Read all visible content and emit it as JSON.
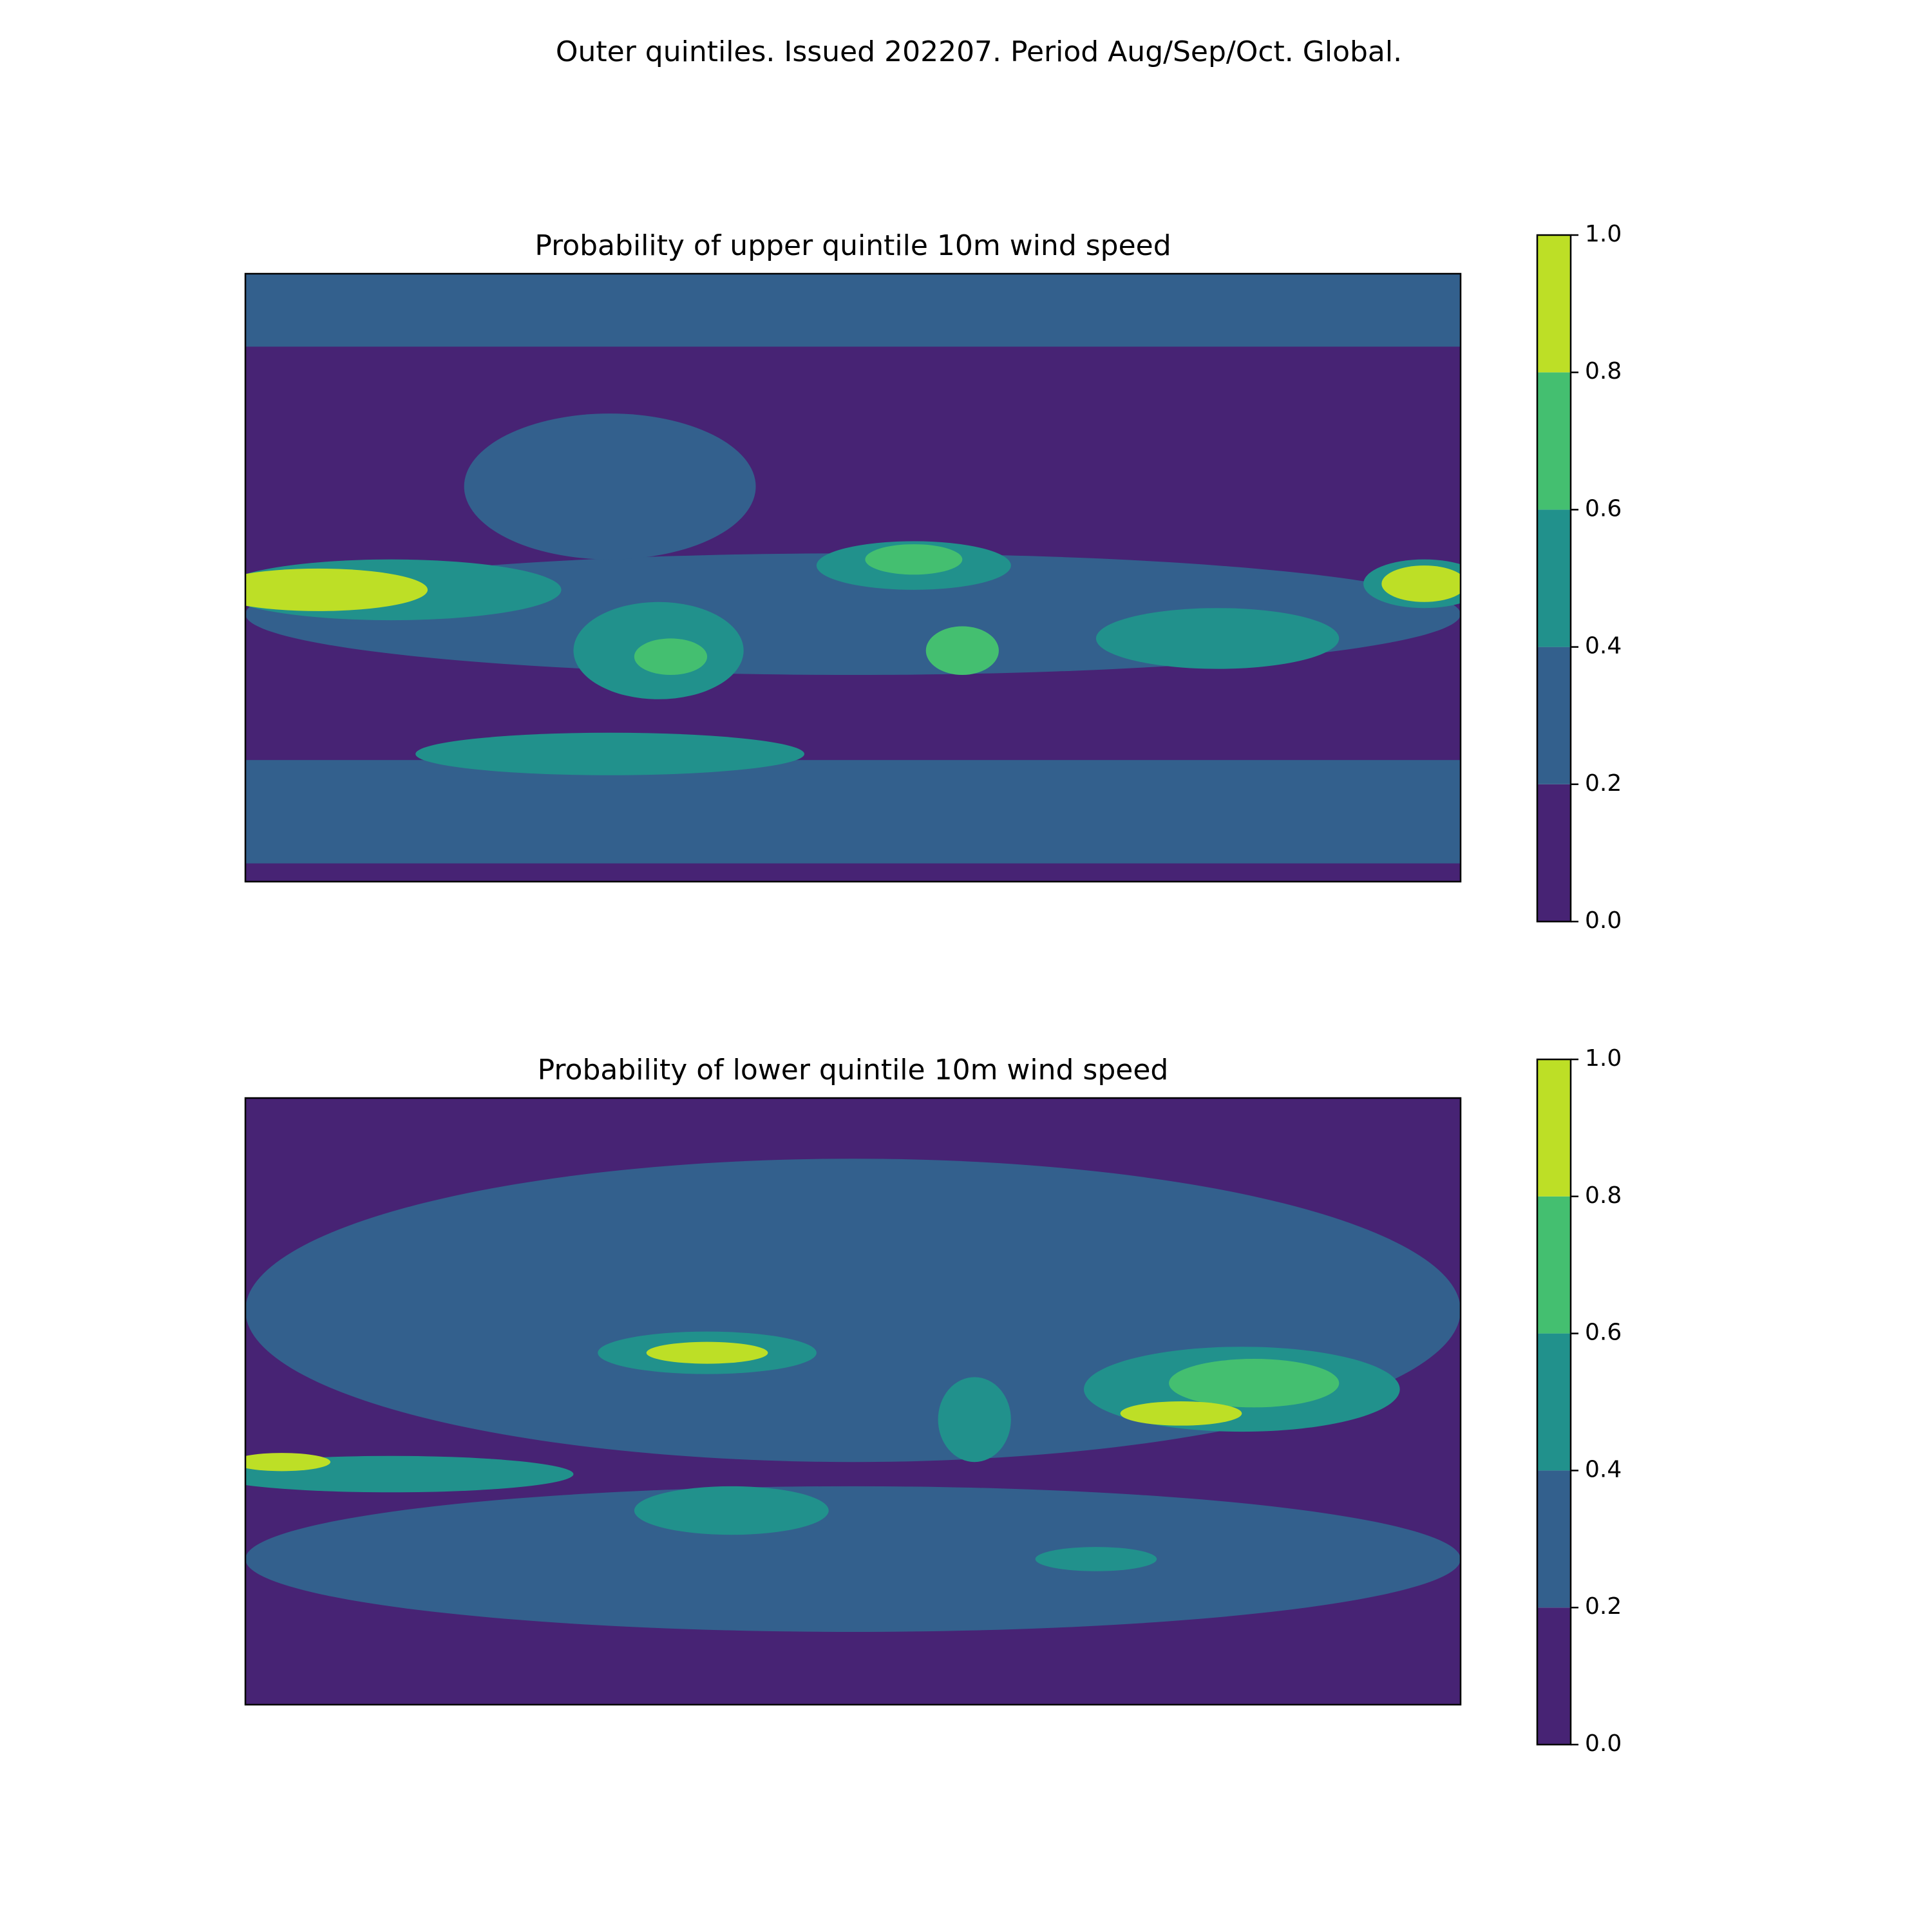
{
  "title": "Outer quintiles. Issued 202207. Period Aug/Sep/Oct. Global.",
  "chart_data": [
    {
      "type": "contour-map",
      "title": "Probability of upper quintile 10m wind speed",
      "levels": [
        0,
        0.2,
        0.4,
        0.6,
        0.8,
        1
      ],
      "colors": [
        "#472374",
        "#33608d",
        "#21918c",
        "#44bf70",
        "#bddf26"
      ],
      "cbar_ticks": [
        {
          "value": 0,
          "label": "0.0"
        },
        0.2,
        0.4,
        0.6,
        0.8,
        {
          "value": 1,
          "label": "1.0"
        }
      ]
    },
    {
      "type": "contour-map",
      "title": "Probability of lower quintile 10m wind speed",
      "levels": [
        0,
        0.2,
        0.4,
        0.6,
        0.8,
        1
      ],
      "colors": [
        "#472374",
        "#33608d",
        "#21918c",
        "#44bf70",
        "#bddf26"
      ],
      "cbar_ticks": [
        {
          "value": 0,
          "label": "0.0"
        },
        0.2,
        0.4,
        0.6,
        0.8,
        {
          "value": 1,
          "label": "1.0"
        }
      ]
    }
  ]
}
